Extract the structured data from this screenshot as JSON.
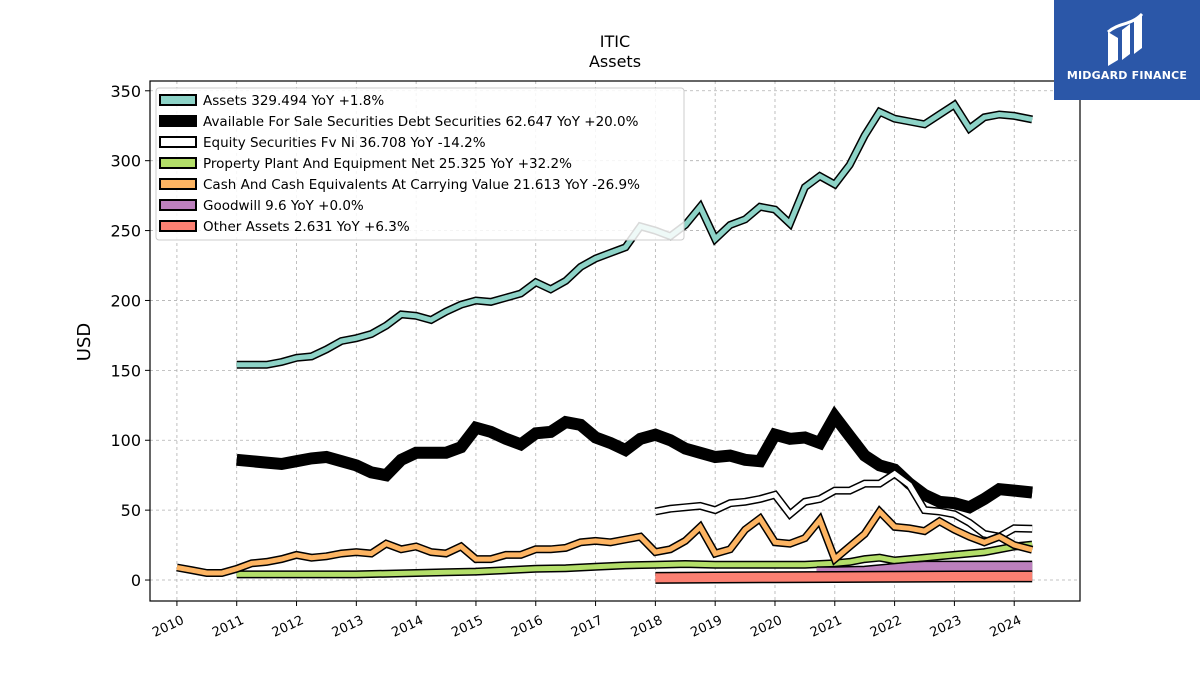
{
  "title": "ITIC",
  "subtitle": "Assets",
  "brand": {
    "name": "MIDGARD FINANCE",
    "color": "#2b57a8"
  },
  "chart_data": {
    "type": "line",
    "title": "ITIC",
    "subtitle": "Assets",
    "xlabel": "",
    "ylabel": "USD",
    "xlim": [
      2009.55,
      2025.1
    ],
    "ylim": [
      -15,
      357
    ],
    "yticks": [
      0,
      50,
      100,
      150,
      200,
      250,
      300,
      350
    ],
    "xticks": [
      2010,
      2011,
      2012,
      2013,
      2014,
      2015,
      2016,
      2017,
      2018,
      2019,
      2020,
      2021,
      2022,
      2023,
      2024
    ],
    "grid": true,
    "legend_position": "top-left",
    "series": [
      {
        "name": "Assets",
        "legend": "Assets  329.494 YoY +1.8%",
        "color": "#8dd3c7",
        "width": 5,
        "points": [
          [
            2011.0,
            154
          ],
          [
            2011.5,
            154
          ],
          [
            2011.75,
            156
          ],
          [
            2012.0,
            159
          ],
          [
            2012.25,
            160
          ],
          [
            2012.5,
            165
          ],
          [
            2012.75,
            171
          ],
          [
            2013.0,
            173
          ],
          [
            2013.25,
            176
          ],
          [
            2013.5,
            182
          ],
          [
            2013.75,
            190
          ],
          [
            2014.0,
            189
          ],
          [
            2014.25,
            186
          ],
          [
            2014.5,
            192
          ],
          [
            2014.75,
            197
          ],
          [
            2015.0,
            200
          ],
          [
            2015.25,
            199
          ],
          [
            2015.5,
            202
          ],
          [
            2015.75,
            205
          ],
          [
            2016.0,
            213
          ],
          [
            2016.25,
            208
          ],
          [
            2016.5,
            214
          ],
          [
            2016.75,
            224
          ],
          [
            2017.0,
            230
          ],
          [
            2017.25,
            234
          ],
          [
            2017.5,
            238
          ],
          [
            2017.75,
            253
          ],
          [
            2018.0,
            250
          ],
          [
            2018.25,
            246
          ],
          [
            2018.5,
            254
          ],
          [
            2018.75,
            267
          ],
          [
            2019.0,
            244
          ],
          [
            2019.25,
            254
          ],
          [
            2019.5,
            258
          ],
          [
            2019.75,
            267
          ],
          [
            2020.0,
            265
          ],
          [
            2020.25,
            255
          ],
          [
            2020.5,
            281
          ],
          [
            2020.75,
            289
          ],
          [
            2021.0,
            283
          ],
          [
            2021.25,
            297
          ],
          [
            2021.5,
            318
          ],
          [
            2021.75,
            335
          ],
          [
            2022.0,
            330
          ],
          [
            2022.25,
            328
          ],
          [
            2022.5,
            326
          ],
          [
            2022.75,
            333
          ],
          [
            2023.0,
            340
          ],
          [
            2023.25,
            323
          ],
          [
            2023.5,
            331
          ],
          [
            2023.75,
            333
          ],
          [
            2024.0,
            332
          ],
          [
            2024.3,
            329.494
          ]
        ]
      },
      {
        "name": "Available For Sale Securities Debt Securities",
        "legend": "Available For Sale Securities Debt Securities  62.647 YoY +20.0%",
        "color": "#000000",
        "width": 9,
        "points": [
          [
            2011.0,
            86
          ],
          [
            2011.25,
            85
          ],
          [
            2011.5,
            84
          ],
          [
            2011.75,
            83
          ],
          [
            2012.0,
            85
          ],
          [
            2012.25,
            87
          ],
          [
            2012.5,
            88
          ],
          [
            2012.75,
            85
          ],
          [
            2013.0,
            82
          ],
          [
            2013.25,
            77
          ],
          [
            2013.5,
            75
          ],
          [
            2013.75,
            86
          ],
          [
            2014.0,
            91
          ],
          [
            2014.25,
            91
          ],
          [
            2014.5,
            91
          ],
          [
            2014.75,
            95
          ],
          [
            2015.0,
            109
          ],
          [
            2015.25,
            106
          ],
          [
            2015.5,
            101
          ],
          [
            2015.75,
            97
          ],
          [
            2016.0,
            105
          ],
          [
            2016.25,
            106
          ],
          [
            2016.5,
            113
          ],
          [
            2016.75,
            111
          ],
          [
            2017.0,
            102
          ],
          [
            2017.25,
            98
          ],
          [
            2017.5,
            93
          ],
          [
            2017.75,
            101
          ],
          [
            2018.0,
            104
          ],
          [
            2018.25,
            100
          ],
          [
            2018.5,
            94
          ],
          [
            2018.75,
            91
          ],
          [
            2019.0,
            88
          ],
          [
            2019.25,
            89
          ],
          [
            2019.5,
            86
          ],
          [
            2019.75,
            85
          ],
          [
            2020.0,
            104
          ],
          [
            2020.25,
            101
          ],
          [
            2020.5,
            102
          ],
          [
            2020.75,
            98
          ],
          [
            2021.0,
            117
          ],
          [
            2021.25,
            103
          ],
          [
            2021.5,
            89
          ],
          [
            2021.75,
            82
          ],
          [
            2022.0,
            79
          ],
          [
            2022.25,
            69
          ],
          [
            2022.5,
            61
          ],
          [
            2022.75,
            56
          ],
          [
            2023.0,
            55
          ],
          [
            2023.25,
            52
          ],
          [
            2023.5,
            58
          ],
          [
            2023.75,
            65
          ],
          [
            2024.0,
            64
          ],
          [
            2024.3,
            62.647
          ]
        ]
      },
      {
        "name": "Equity Securities Fv Ni",
        "legend": "Equity Securities Fv Ni  36.708 YoY -14.2%",
        "color": "#ffffff",
        "width": 5,
        "points": [
          [
            2018.0,
            49
          ],
          [
            2018.25,
            51
          ],
          [
            2018.5,
            52
          ],
          [
            2018.75,
            53
          ],
          [
            2019.0,
            50
          ],
          [
            2019.25,
            55
          ],
          [
            2019.5,
            56
          ],
          [
            2019.75,
            58
          ],
          [
            2020.0,
            61
          ],
          [
            2020.25,
            47
          ],
          [
            2020.5,
            56
          ],
          [
            2020.75,
            58
          ],
          [
            2021.0,
            64
          ],
          [
            2021.25,
            64
          ],
          [
            2021.5,
            69
          ],
          [
            2021.75,
            69
          ],
          [
            2022.0,
            76
          ],
          [
            2022.25,
            68
          ],
          [
            2022.5,
            50
          ],
          [
            2022.75,
            49
          ],
          [
            2023.0,
            47
          ],
          [
            2023.25,
            41
          ],
          [
            2023.5,
            33
          ],
          [
            2023.75,
            31
          ],
          [
            2024.0,
            37
          ],
          [
            2024.3,
            36.708
          ]
        ]
      },
      {
        "name": "Property Plant And Equipment Net",
        "legend": "Property Plant And Equipment Net  25.325 YoY +32.2%",
        "color": "#b3de69",
        "width": 5,
        "points": [
          [
            2011.0,
            4
          ],
          [
            2012.0,
            4
          ],
          [
            2013.0,
            4
          ],
          [
            2013.5,
            4.5
          ],
          [
            2014.0,
            5
          ],
          [
            2014.5,
            5.5
          ],
          [
            2015.0,
            6
          ],
          [
            2015.5,
            7
          ],
          [
            2016.0,
            8
          ],
          [
            2016.5,
            8.5
          ],
          [
            2017.0,
            9.5
          ],
          [
            2017.5,
            10.5
          ],
          [
            2018.0,
            11
          ],
          [
            2018.5,
            11.5
          ],
          [
            2019.0,
            11
          ],
          [
            2019.5,
            11
          ],
          [
            2020.0,
            11
          ],
          [
            2020.5,
            11
          ],
          [
            2021.0,
            12
          ],
          [
            2021.25,
            13
          ],
          [
            2021.5,
            15
          ],
          [
            2021.75,
            16
          ],
          [
            2022.0,
            14
          ],
          [
            2022.25,
            15
          ],
          [
            2022.5,
            16
          ],
          [
            2022.75,
            17
          ],
          [
            2023.0,
            18
          ],
          [
            2023.25,
            19
          ],
          [
            2023.5,
            20
          ],
          [
            2023.75,
            22
          ],
          [
            2024.0,
            24
          ],
          [
            2024.3,
            25.325
          ]
        ]
      },
      {
        "name": "Cash And Cash Equivalents At Carrying Value",
        "legend": "Cash And Cash Equivalents At Carrying Value  21.613 YoY -26.9%",
        "color": "#fdb462",
        "width": 5,
        "points": [
          [
            2010.0,
            9
          ],
          [
            2010.25,
            7
          ],
          [
            2010.5,
            5
          ],
          [
            2010.75,
            5
          ],
          [
            2011.0,
            8
          ],
          [
            2011.25,
            12
          ],
          [
            2011.5,
            13
          ],
          [
            2011.75,
            15
          ],
          [
            2012.0,
            18
          ],
          [
            2012.25,
            16
          ],
          [
            2012.5,
            17
          ],
          [
            2012.75,
            19
          ],
          [
            2013.0,
            20
          ],
          [
            2013.25,
            19
          ],
          [
            2013.5,
            26
          ],
          [
            2013.75,
            22
          ],
          [
            2014.0,
            24
          ],
          [
            2014.25,
            20
          ],
          [
            2014.5,
            19
          ],
          [
            2014.75,
            24
          ],
          [
            2015.0,
            15
          ],
          [
            2015.25,
            15
          ],
          [
            2015.5,
            18
          ],
          [
            2015.75,
            18
          ],
          [
            2016.0,
            22
          ],
          [
            2016.25,
            22
          ],
          [
            2016.5,
            23
          ],
          [
            2016.75,
            27
          ],
          [
            2017.0,
            28
          ],
          [
            2017.25,
            27
          ],
          [
            2017.5,
            29
          ],
          [
            2017.75,
            31
          ],
          [
            2018.0,
            20
          ],
          [
            2018.25,
            22
          ],
          [
            2018.5,
            28
          ],
          [
            2018.75,
            38
          ],
          [
            2019.0,
            19
          ],
          [
            2019.25,
            22
          ],
          [
            2019.5,
            36
          ],
          [
            2019.75,
            44
          ],
          [
            2020.0,
            27
          ],
          [
            2020.25,
            26
          ],
          [
            2020.5,
            30
          ],
          [
            2020.75,
            43
          ],
          [
            2021.0,
            15
          ],
          [
            2021.25,
            24
          ],
          [
            2021.5,
            33
          ],
          [
            2021.75,
            49
          ],
          [
            2022.0,
            38
          ],
          [
            2022.25,
            37
          ],
          [
            2022.5,
            35
          ],
          [
            2022.75,
            42
          ],
          [
            2023.0,
            36
          ],
          [
            2023.25,
            31
          ],
          [
            2023.5,
            27
          ],
          [
            2023.75,
            31
          ],
          [
            2024.0,
            25
          ],
          [
            2024.3,
            21.613
          ]
        ]
      },
      {
        "name": "Goodwill",
        "legend": "Goodwill  9.6 YoY +0.0%",
        "color": "#bc80bd",
        "width": 9,
        "points": [
          [
            2020.7,
            5.5
          ],
          [
            2021.0,
            5.5
          ],
          [
            2021.5,
            6
          ],
          [
            2021.75,
            7
          ],
          [
            2022.0,
            8
          ],
          [
            2022.25,
            9
          ],
          [
            2022.5,
            9.6
          ],
          [
            2023.0,
            9.6
          ],
          [
            2023.5,
            9.6
          ],
          [
            2024.0,
            9.6
          ],
          [
            2024.3,
            9.6
          ]
        ]
      },
      {
        "name": "Other Assets",
        "legend": "Other Assets  2.631 YoY +6.3%",
        "color": "#fb8072",
        "width": 9,
        "points": [
          [
            2018.0,
            1.5
          ],
          [
            2019.0,
            1.8
          ],
          [
            2020.0,
            2.0
          ],
          [
            2021.0,
            2.2
          ],
          [
            2022.0,
            2.4
          ],
          [
            2023.0,
            2.5
          ],
          [
            2024.0,
            2.6
          ],
          [
            2024.3,
            2.631
          ]
        ]
      }
    ]
  }
}
